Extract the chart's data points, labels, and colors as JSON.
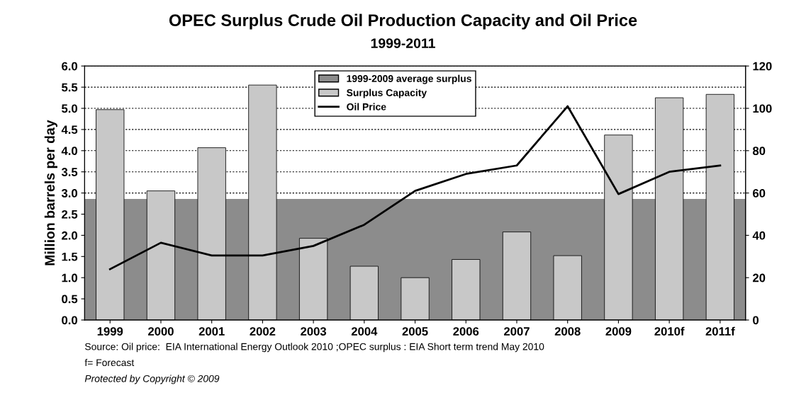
{
  "chart_data": {
    "type": "bar",
    "title": "OPEC Surplus Crude Oil Production Capacity and Oil Price",
    "subtitle": "1999-2011",
    "ylabel": "Million barrels per day",
    "categories": [
      "1999",
      "2000",
      "2001",
      "2002",
      "2003",
      "2004",
      "2005",
      "2006",
      "2007",
      "2008",
      "2009",
      "2010f",
      "2011f"
    ],
    "series": [
      {
        "name": "Surplus Capacity",
        "type": "bar",
        "color": "#c8c8c8",
        "values": [
          4.97,
          3.05,
          4.07,
          5.55,
          1.93,
          1.27,
          1.0,
          1.43,
          2.08,
          1.52,
          4.37,
          5.25,
          5.33
        ]
      },
      {
        "name": "Oil Price",
        "type": "line",
        "axis": "y2",
        "color": "#000000",
        "values": [
          24,
          36.5,
          30.5,
          30.5,
          35,
          45,
          61,
          69,
          73,
          101,
          59.5,
          70,
          73
        ]
      }
    ],
    "bands": [
      {
        "axis": "y",
        "from": 0,
        "to": 2.85,
        "label": "1999-2009 average surplus",
        "color": "#8c8c8c"
      }
    ],
    "ylim": [
      0,
      6
    ],
    "yticks": [
      {
        "value": 0,
        "label": "0.0"
      },
      {
        "value": 0.5,
        "label": "0.5"
      },
      {
        "value": 1,
        "label": "1.0"
      },
      {
        "value": 1.5,
        "label": "1.5"
      },
      {
        "value": 2,
        "label": "2.0"
      },
      {
        "value": 2.5,
        "label": "2.5"
      },
      {
        "value": 3,
        "label": "3.0"
      },
      {
        "value": 3.5,
        "label": "3.5"
      },
      {
        "value": 4,
        "label": "4.0"
      },
      {
        "value": 4.5,
        "label": "4.5"
      },
      {
        "value": 5,
        "label": "5.0"
      },
      {
        "value": 5.5,
        "label": "5.5"
      },
      {
        "value": 6,
        "label": "6.0"
      }
    ],
    "y2lim": [
      0,
      120
    ],
    "y2ticks": [
      0,
      20,
      40,
      60,
      80,
      100,
      120
    ],
    "grid": "y",
    "legend": "top center",
    "line_style": "solid",
    "marker": "none",
    "annotations": [
      "Source: Oil price:  EIA International Energy Outlook 2010 ;OPEC surplus : EIA Short term trend May 2010",
      "f= Forecast",
      "Protected by Copyright © 2009"
    ]
  }
}
